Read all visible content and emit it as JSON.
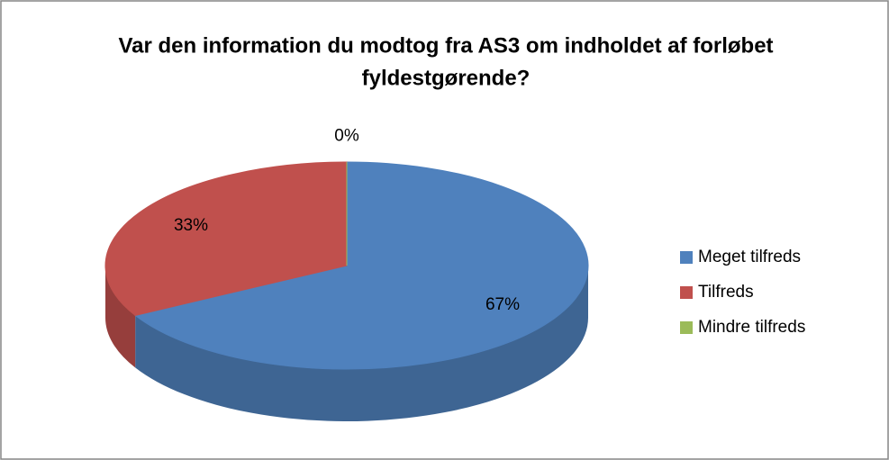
{
  "chart_data": {
    "type": "pie3d",
    "title_lines": [
      "Var den information du modtog fra AS3 om indholdet af forløbet",
      "fyldestgørende?"
    ],
    "categories": [
      "Meget tilfreds",
      "Tilfreds",
      "Mindre tilfreds"
    ],
    "values": [
      67,
      33,
      0
    ],
    "value_labels": [
      "67%",
      "33%",
      "0%"
    ],
    "colors": [
      "#4f81bd",
      "#c0504d",
      "#9bbb59"
    ],
    "legend": "right"
  }
}
